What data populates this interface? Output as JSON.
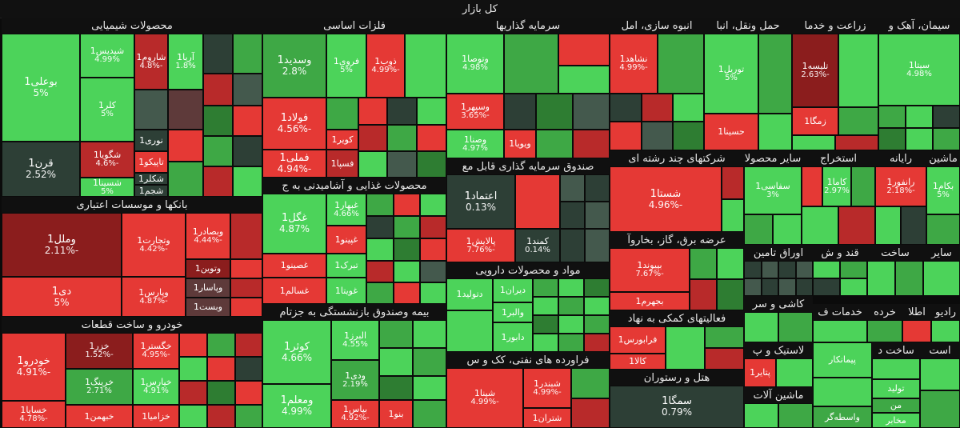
{
  "topbar": {
    "title": "کل بازار"
  },
  "sectors": {
    "chem": "محصولات شیمیایی",
    "metals": "فلزات اساسی",
    "invest": "سرمایه گذاریها",
    "mass": "انبوه سازی، امل",
    "transport": "حمل ونقل، انبا",
    "agri": "زراعت و خدما",
    "cement": "سیمان، آهک و",
    "banks": "بانکها و موسسات اعتباری",
    "food": "محصولات غذایی و آشامیدنی به ج",
    "fund": "صندوق سرمایه گذاری قابل مع",
    "multi": "شرکتهای چند رشته ای",
    "other_prod": "سایر محصولا",
    "extract": "استخراج",
    "computer": "رایانه",
    "machinery": "ماشین",
    "pharma": "مواد و محصولات دارویی",
    "utility": "عرضه برق، گاز، بخاروآ",
    "securities": "اوراق تامین",
    "qand": "قند و ش",
    "construct": "ساخت",
    "other": "سایر",
    "auto": "خودرو و ساخت قطعات",
    "insurance": "بیمه وصندوق بازنشستگی به جزتام",
    "refinery": "فراورده های نفتی، کک و س",
    "services": "فعالیتهای کمکی به نهاد",
    "tile": "کاشی و سر",
    "khadamat": "خدمات ف",
    "khorde": "خرده",
    "etla": "اطلا",
    "plastic": "لاستیک و پ",
    "hotel": "هتل و رستوران",
    "machinery2": "ماشین آلات",
    "ast": "است",
    "sakht2": "ساخت د",
    "radio": "رادیو"
  },
  "tiles": {
    "bouali": {
      "name": "بوعلی1",
      "chg": "5%"
    },
    "shepdis": {
      "name": "شپدیس1",
      "chg": "4.99%"
    },
    "sharoud": {
      "name": "شاروم1",
      "chg": "-4.8%"
    },
    "aria": {
      "name": "آریا1",
      "chg": "1.8%"
    },
    "kala": {
      "name": "کلر1",
      "chg": "5%"
    },
    "noori": {
      "name": "نوری1",
      "chg": ""
    },
    "shgouya": {
      "name": "شگویا1",
      "chg": "-4.6%"
    },
    "taiko": {
      "name": "تاپیکو1",
      "chg": ""
    },
    "ghorn": {
      "name": "قرن1",
      "chg": "2.52%"
    },
    "shsina": {
      "name": "شسینا1",
      "chg": "5%"
    },
    "shkalr": {
      "name": "شکلر1",
      "chg": ""
    },
    "shjam": {
      "name": "شجم1",
      "chg": ""
    },
    "vasdid": {
      "name": "وسدید1",
      "chg": "2.8%"
    },
    "foroui": {
      "name": "فروی1",
      "chg": "5%"
    },
    "zob": {
      "name": "ذوب1",
      "chg": "-4.99%"
    },
    "foolad": {
      "name": "فولاد1",
      "chg": "-4.56%"
    },
    "kavir": {
      "name": "کویر1",
      "chg": ""
    },
    "fesepa": {
      "name": "فسپا1",
      "chg": ""
    },
    "fameli": {
      "name": "فملی1",
      "chg": "-4.94%"
    },
    "vtosa": {
      "name": "وتوصا1",
      "chg": "4.98%"
    },
    "vsepah": {
      "name": "وسپهر1",
      "chg": "-3.65%"
    },
    "vesna": {
      "name": "وصنا1",
      "chg": "4.97%"
    },
    "vaya": {
      "name": "ویویا1",
      "chg": ""
    },
    "nshahd": {
      "name": "نشاهد1",
      "chg": "-4.99%"
    },
    "tvril": {
      "name": "توریل1",
      "chg": "5%"
    },
    "taleese": {
      "name": "تلیسه1",
      "chg": "-2.63%"
    },
    "zamga": {
      "name": "زمگا1",
      "chg": ""
    },
    "hasina": {
      "name": "حسینا1",
      "chg": ""
    },
    "sita": {
      "name": "سیتا1",
      "chg": "4.98%"
    },
    "vamelal": {
      "name": "وملل1",
      "chg": "-2.11%"
    },
    "vtjarat": {
      "name": "وتجارت1",
      "chg": "-4.42%"
    },
    "vbsadr": {
      "name": "وبصادر1",
      "chg": "-4.44%"
    },
    "vtown": {
      "name": "وتوین1",
      "chg": ""
    },
    "vparsi": {
      "name": "وپارس1",
      "chg": "-4.87%"
    },
    "vpasar": {
      "name": "وپاسار1",
      "chg": ""
    },
    "vest": {
      "name": "وبست1",
      "chg": ""
    },
    "dey": {
      "name": "دی1",
      "chg": "5%"
    },
    "ghegol": {
      "name": "غگل1",
      "chg": "4.87%"
    },
    "ghbehar": {
      "name": "غبهار1",
      "chg": "4.66%"
    },
    "ghpinoo": {
      "name": "غپینو1",
      "chg": ""
    },
    "ghsinoo": {
      "name": "غصینو1",
      "chg": ""
    },
    "tberk": {
      "name": "تبرک1",
      "chg": ""
    },
    "ghsalam": {
      "name": "غسالم1",
      "chg": ""
    },
    "ghgouta": {
      "name": "غویتا1",
      "chg": ""
    },
    "etemad": {
      "name": "اعتماد1",
      "chg": "0.13%"
    },
    "palayesh": {
      "name": "پالایش1",
      "chg": "-7.76%"
    },
    "kamand": {
      "name": "کمند1",
      "chg": "0.14%"
    },
    "shasta": {
      "name": "شستا1",
      "chg": "-4.96%"
    },
    "safasi": {
      "name": "سفاسی1",
      "chg": "3%"
    },
    "kama": {
      "name": "کاما1",
      "chg": "2.97%"
    },
    "ranfor": {
      "name": "رانفور1",
      "chg": "-2.18%"
    },
    "bakam": {
      "name": "بکام1",
      "chg": "5%"
    },
    "dtolid": {
      "name": "دتولید1",
      "chg": ""
    },
    "diran": {
      "name": "دیران1",
      "chg": ""
    },
    "valber": {
      "name": "والبر1",
      "chg": ""
    },
    "dabour": {
      "name": "دابور1",
      "chg": ""
    },
    "bipvand": {
      "name": "بپیوند1",
      "chg": "-7.67%"
    },
    "bjahrom": {
      "name": "بجهرم1",
      "chg": ""
    },
    "fravoors": {
      "name": "فرابورس1",
      "chg": ""
    },
    "kala2": {
      "name": "کالا1",
      "chg": ""
    },
    "khzar": {
      "name": "خزر1",
      "chg": "-1.52%"
    },
    "khgostar": {
      "name": "خگستر1",
      "chg": "-4.95%"
    },
    "khodro": {
      "name": "خودرو1",
      "chg": "-4.91%"
    },
    "khrang": {
      "name": "خرینگ1",
      "chg": "2.71%"
    },
    "khapars": {
      "name": "خپارس1",
      "chg": "4.91%"
    },
    "khsapa": {
      "name": "خساپا1",
      "chg": "-4.78%"
    },
    "khbahman": {
      "name": "خبهمن1",
      "chg": ""
    },
    "khzamia": {
      "name": "خزامیا1",
      "chg": ""
    },
    "kosar": {
      "name": "کوثر1",
      "chg": "4.66%"
    },
    "alborz": {
      "name": "البرز1",
      "chg": "4.55%"
    },
    "vdi": {
      "name": "ودی1",
      "chg": "2.19%"
    },
    "vmolem": {
      "name": "ومعلم1",
      "chg": "4.99%"
    },
    "bpas": {
      "name": "بپاس1",
      "chg": "-4.92%"
    },
    "bnou": {
      "name": "بنو1",
      "chg": ""
    },
    "shpina": {
      "name": "شپنا1",
      "chg": "-4.99%"
    },
    "shbandar": {
      "name": "شبندر1",
      "chg": "-4.99%"
    },
    "shtran": {
      "name": "شتران1",
      "chg": ""
    },
    "pataer": {
      "name": "پتایر1",
      "chg": ""
    },
    "simga": {
      "name": "سمگا1",
      "chg": "0.79%"
    },
    "peymankar": {
      "name": "پیمانکار",
      "chg": ""
    },
    "vasete": {
      "name": "واسطه‌گر",
      "chg": ""
    },
    "tolid": {
      "name": "تولید",
      "chg": ""
    },
    "mokhaber": {
      "name": "مخابر",
      "chg": ""
    },
    "mn": {
      "name": "من",
      "chg": ""
    }
  }
}
